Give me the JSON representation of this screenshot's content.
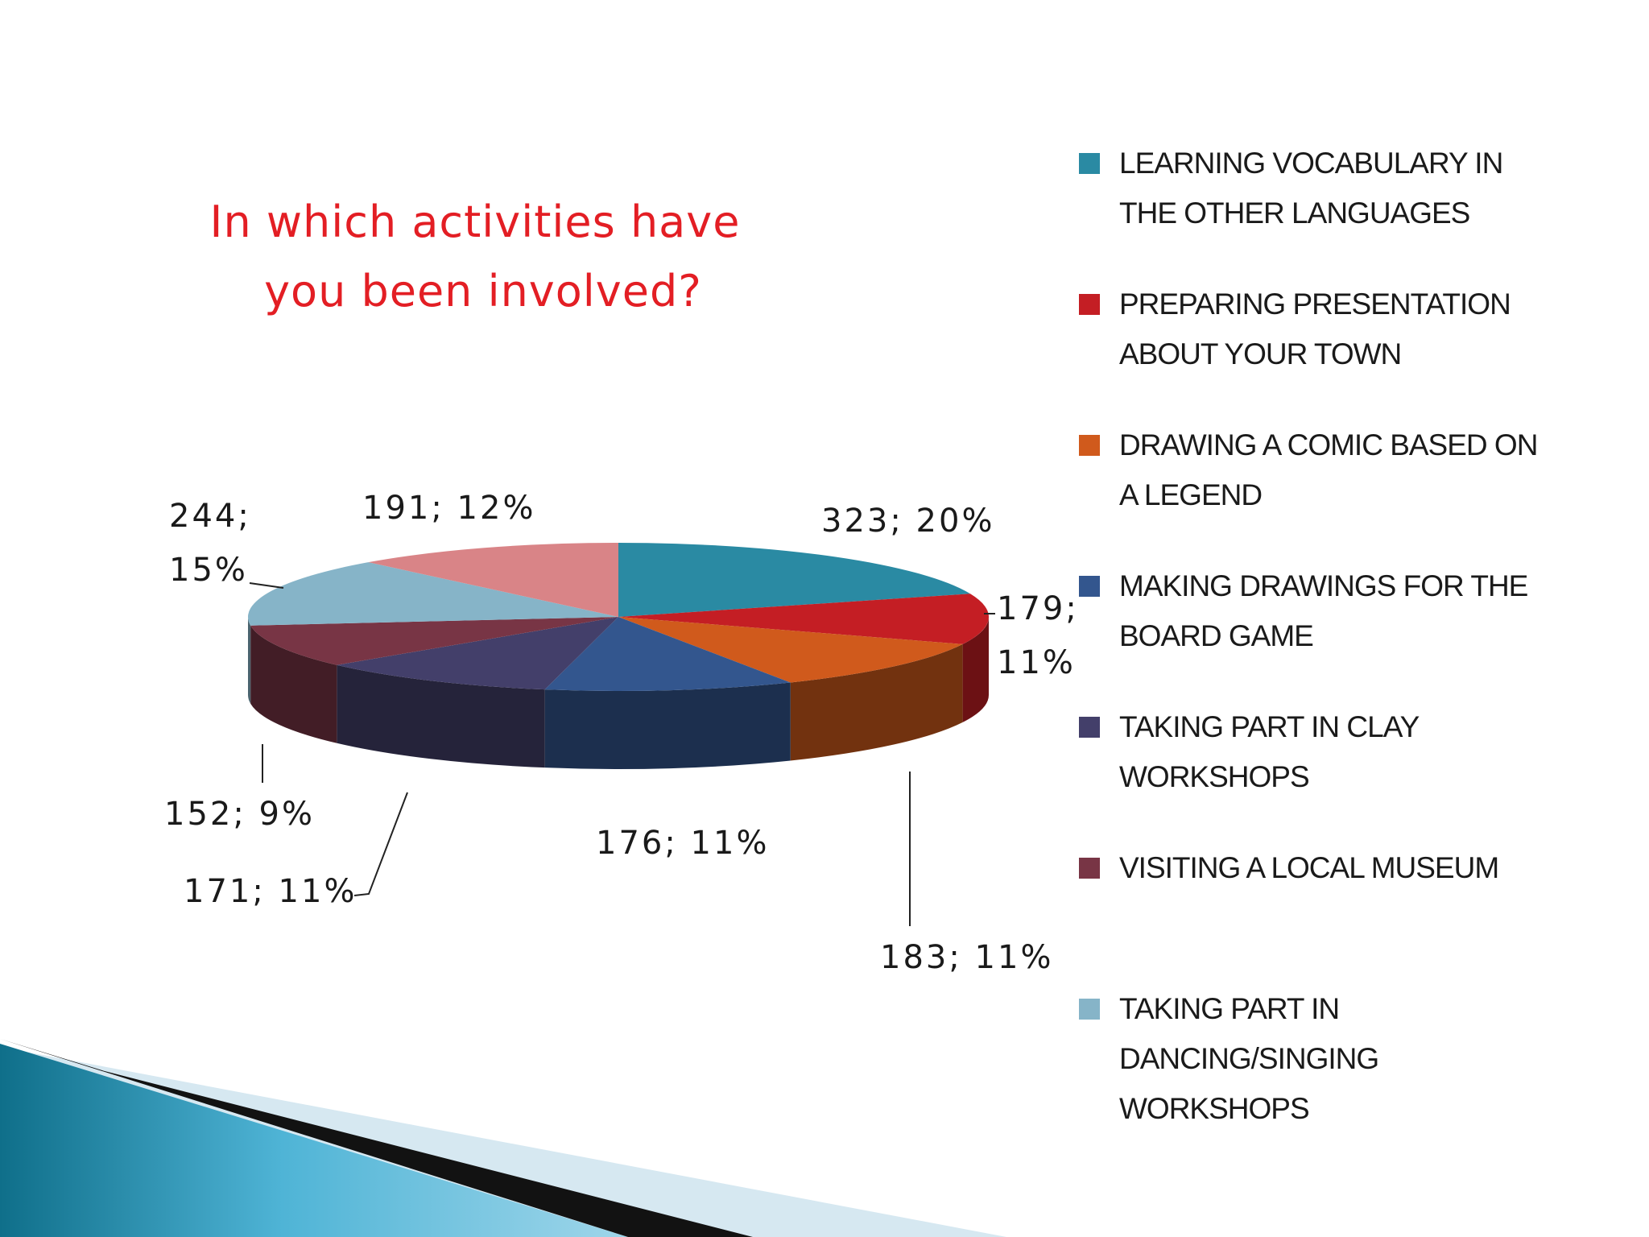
{
  "chart_data": {
    "type": "pie",
    "title_lines": [
      "In which activities have",
      "you been involved?"
    ],
    "slices": [
      {
        "label": "LEARNING VOCABULARY IN THE OTHER LANGUAGES",
        "legend_lines": [
          "LEARNING VOCABULARY IN",
          "THE OTHER LANGUAGES"
        ],
        "value": 323,
        "percent": "20%",
        "data_label_lines": [
          "323; 20%"
        ],
        "color": "#2a8aa3"
      },
      {
        "label": "PREPARING PRESENTATION ABOUT YOUR TOWN",
        "legend_lines": [
          "PREPARING PRESENTATION",
          "ABOUT YOUR TOWN"
        ],
        "value": 179,
        "percent": "11%",
        "data_label_lines": [
          "179;",
          "11%"
        ],
        "color": "#c41e24"
      },
      {
        "label": "DRAWING A COMIC BASED ON A LEGEND",
        "legend_lines": [
          "DRAWING A COMIC BASED ON",
          "A LEGEND"
        ],
        "value": 183,
        "percent": "11%",
        "data_label_lines": [
          "183; 11%"
        ],
        "color": "#d05a1c"
      },
      {
        "label": "MAKING DRAWINGS FOR THE BOARD GAME",
        "legend_lines": [
          "MAKING DRAWINGS FOR THE",
          "BOARD GAME"
        ],
        "value": 176,
        "percent": "11%",
        "data_label_lines": [
          "176; 11%"
        ],
        "color": "#33568e"
      },
      {
        "label": "TAKING PART IN CLAY WORKSHOPS",
        "legend_lines": [
          "TAKING PART IN CLAY",
          "WORKSHOPS"
        ],
        "value": 171,
        "percent": "11%",
        "data_label_lines": [
          "171; 11%"
        ],
        "color": "#433f6a"
      },
      {
        "label": "VISITING A LOCAL MUSEUM",
        "legend_lines": [
          "VISITING A LOCAL MUSEUM"
        ],
        "value": 152,
        "percent": "9%",
        "data_label_lines": [
          "152; 9%"
        ],
        "color": "#783545"
      },
      {
        "label": "TAKING PART IN DANCING/SINGING WORKSHOPS",
        "legend_lines": [
          "TAKING PART IN",
          "DANCING/SINGING",
          "WORKSHOPS"
        ],
        "value": 244,
        "percent": "15%",
        "data_label_lines": [
          "244;",
          "15%"
        ],
        "color": "#86b4c8"
      },
      {
        "label": "",
        "legend_lines": [],
        "value": 191,
        "percent": "12%",
        "data_label_lines": [
          "191; 12%"
        ],
        "color": "#d98487"
      }
    ],
    "legend_placement": "right",
    "style": "3d-pie"
  }
}
